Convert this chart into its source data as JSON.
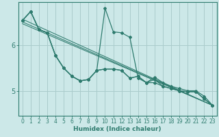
{
  "xlabel": "Humidex (Indice chaleur)",
  "bg_color": "#cce8e8",
  "line_color": "#2e7b6e",
  "grid_color": "#aacccc",
  "xlim": [
    -0.5,
    23.5
  ],
  "ylim": [
    4.45,
    6.95
  ],
  "yticks": [
    5,
    6
  ],
  "xticks": [
    0,
    1,
    2,
    3,
    4,
    5,
    6,
    7,
    8,
    9,
    10,
    11,
    12,
    13,
    14,
    15,
    16,
    17,
    18,
    19,
    20,
    21,
    22,
    23
  ],
  "y_spike": [
    6.55,
    6.75,
    6.35,
    6.28,
    5.78,
    5.5,
    5.32,
    5.22,
    5.25,
    5.45,
    6.82,
    6.3,
    6.28,
    6.18,
    5.28,
    5.18,
    5.3,
    5.18,
    5.1,
    5.05,
    5.0,
    5.0,
    4.88,
    4.68
  ],
  "y_base1": [
    6.55,
    6.75,
    6.35,
    6.28,
    5.78,
    5.5,
    5.32,
    5.22,
    5.25,
    5.45,
    5.48,
    5.48,
    5.45,
    5.28,
    5.32,
    5.18,
    5.18,
    5.1,
    5.05,
    5.0,
    4.98,
    4.98,
    4.82,
    4.68
  ],
  "y_base2": [
    6.55,
    6.75,
    6.35,
    6.28,
    5.78,
    5.5,
    5.32,
    5.22,
    5.25,
    5.45,
    5.48,
    5.48,
    5.45,
    5.28,
    5.32,
    5.18,
    5.25,
    5.1,
    5.05,
    5.0,
    4.98,
    4.98,
    4.82,
    4.68
  ],
  "reg_lines": [
    {
      "x0": 0,
      "y0": 6.58,
      "x1": 23,
      "y1": 4.68
    },
    {
      "x0": 0,
      "y0": 6.52,
      "x1": 23,
      "y1": 4.68
    },
    {
      "x0": 0,
      "y0": 6.48,
      "x1": 23,
      "y1": 4.68
    }
  ]
}
